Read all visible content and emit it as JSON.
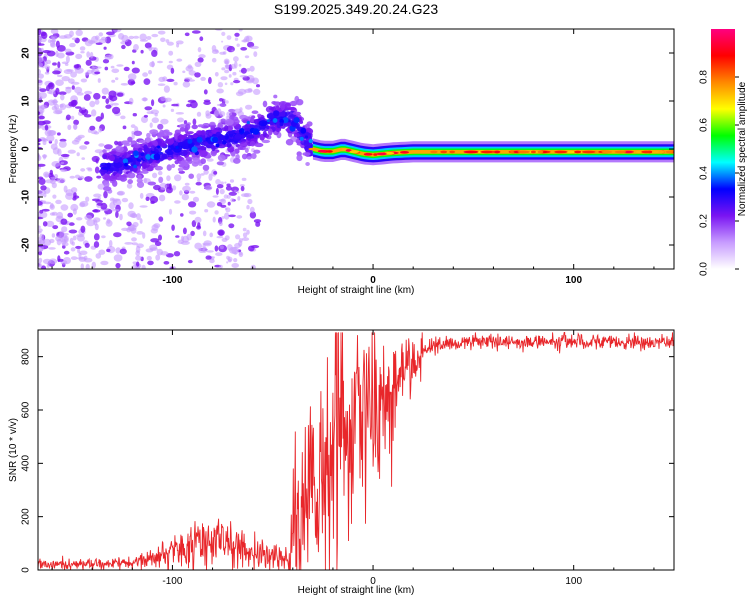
{
  "title": "S199.2025.349.20.24.G23",
  "chart_data": [
    {
      "type": "heatmap",
      "xlabel": "Height of straight line (km)",
      "ylabel": "Frequency (Hz)",
      "xlim": [
        -167,
        150
      ],
      "ylim": [
        -25,
        25
      ],
      "xticks": [
        -100,
        0,
        100
      ],
      "yticks": [
        -20,
        -10,
        0,
        10,
        20
      ],
      "colorbar": {
        "label": "Normalized spectral amplitude",
        "range": [
          0,
          1
        ],
        "ticks": [
          0.0,
          0.2,
          0.4,
          0.6,
          0.8
        ],
        "colors": [
          "#ffffff",
          "#c79bff",
          "#7a14f2",
          "#0000ff",
          "#00ffff",
          "#00ff00",
          "#ffff00",
          "#ff8800",
          "#ff0000",
          "#ff0080"
        ]
      },
      "ridge": {
        "x": [
          -130,
          -120,
          -110,
          -100,
          -90,
          -80,
          -70,
          -60,
          -55,
          -50,
          -45,
          -40,
          -35,
          -30,
          -25,
          -20,
          -15,
          -10,
          -5,
          0,
          10,
          20,
          40,
          60,
          80,
          100,
          120,
          150
        ],
        "y": [
          -3.5,
          -2.5,
          -1,
          0,
          1,
          2,
          2.5,
          3.5,
          5,
          6,
          6.5,
          6,
          3,
          0,
          -0.5,
          -0.5,
          0,
          -0.5,
          -1,
          -1.2,
          -0.8,
          -0.6,
          -0.6,
          -0.6,
          -0.6,
          -0.6,
          -0.6,
          -0.6
        ]
      }
    },
    {
      "type": "line",
      "xlabel": "Height of straight line (km)",
      "ylabel": "SNR (10 * v/v)",
      "xlim": [
        -167,
        150
      ],
      "ylim": [
        0,
        900
      ],
      "xticks": [
        -100,
        0,
        100
      ],
      "yticks": [
        0,
        200,
        400,
        600,
        800
      ],
      "color": "#e8262a",
      "series": [
        {
          "x": [
            -167,
            -140,
            -120,
            -110,
            -100,
            -90,
            -80,
            -70,
            -60,
            -50,
            -42,
            -40,
            -35,
            -30,
            -25,
            -20,
            -17,
            -15,
            -10,
            -5,
            0,
            5,
            10,
            15,
            20,
            25,
            30,
            40,
            50,
            60,
            80,
            100,
            120,
            140,
            150
          ],
          "values": [
            20,
            22,
            25,
            40,
            70,
            100,
            110,
            90,
            70,
            50,
            40,
            150,
            220,
            300,
            420,
            500,
            550,
            450,
            520,
            540,
            580,
            620,
            680,
            740,
            790,
            820,
            840,
            850,
            855,
            855,
            855,
            860,
            855,
            855,
            855
          ]
        }
      ]
    }
  ]
}
